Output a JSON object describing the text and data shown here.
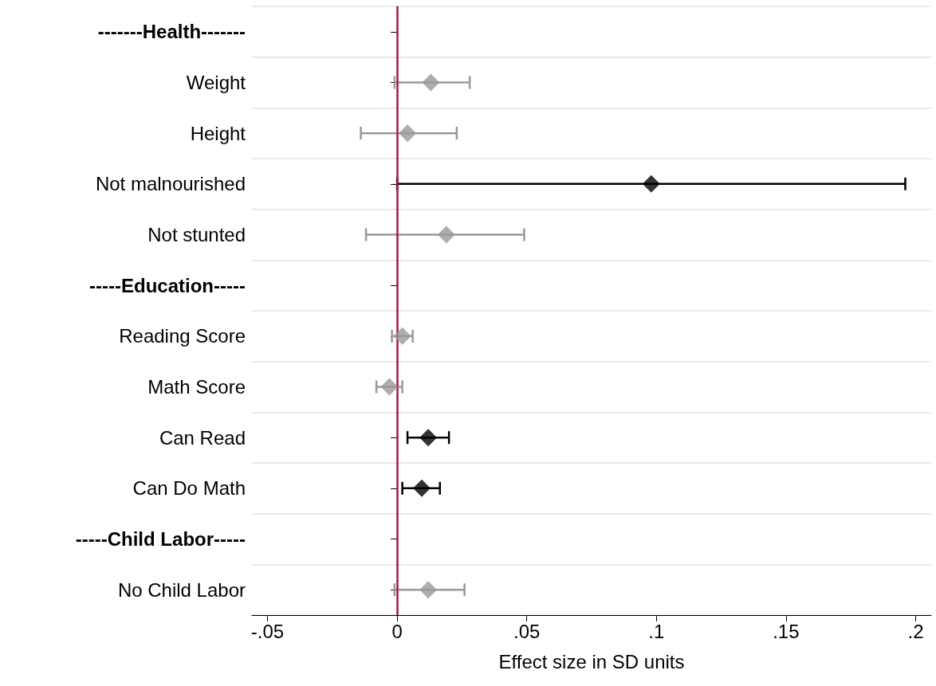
{
  "chart_data": {
    "type": "scatter",
    "orientation": "horizontal",
    "xlabel": "Effect size in SD units",
    "categories": [
      "-------Health-------",
      "Weight",
      "Height",
      "Not malnourished",
      "Not stunted",
      "-----Education-----",
      "Reading Score",
      "Math Score",
      "Can Read",
      "Can Do Math",
      "-----Child Labor-----",
      "No Child Labor"
    ],
    "series": [
      {
        "color": "#999999",
        "values": [
          null,
          0.013,
          0.004,
          null,
          0.019,
          null,
          0.002,
          -0.003,
          null,
          null,
          null,
          0.012
        ],
        "errors": [
          null,
          [
            -0.001,
            0.028
          ],
          [
            -0.014,
            0.023
          ],
          null,
          [
            -0.012,
            0.049
          ],
          null,
          [
            -0.002,
            0.006
          ],
          [
            -0.008,
            0.002
          ],
          null,
          null,
          null,
          [
            -0.001,
            0.026
          ]
        ]
      },
      {
        "color": "#000000",
        "values": [
          null,
          null,
          null,
          0.098,
          null,
          null,
          null,
          null,
          0.012,
          0.0095,
          null,
          null
        ],
        "errors": [
          null,
          null,
          null,
          [
            0,
            0.196
          ],
          null,
          null,
          null,
          null,
          [
            0.004,
            0.02
          ],
          [
            0.002,
            0.0165
          ],
          null,
          null
        ]
      }
    ],
    "xlim": [
      -0.056,
      0.206
    ],
    "xticks": [
      {
        "value": -0.05,
        "label": "-.05"
      },
      0,
      {
        "value": 0.05,
        "label": ".05"
      },
      {
        "value": 0.1,
        "label": ".1"
      },
      {
        "value": 0.15,
        "label": ".15"
      },
      {
        "value": 0.2,
        "label": ".2"
      }
    ],
    "ref_lines": [
      {
        "axis": "x",
        "value": 0,
        "color": "#a6163f"
      }
    ],
    "grid": "y",
    "marker": "diamond"
  }
}
